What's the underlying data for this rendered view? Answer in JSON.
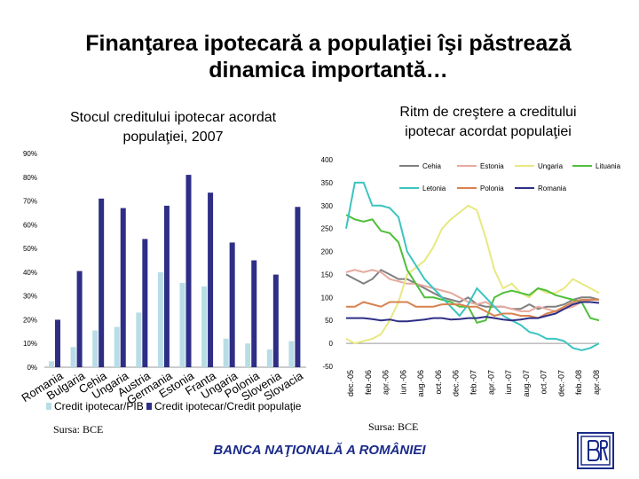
{
  "slide": {
    "title_line1": "Finanţarea ipotecară a populaţiei îşi păstrează",
    "title_line2": "dinamica importantă…",
    "footer": "BANCA NAŢIONALĂ A ROMÂNIEI",
    "logo_icon": "bnr-logo-icon",
    "accent_color": "#1a2a8a"
  },
  "chart_data": [
    {
      "type": "bar",
      "subtitle_line1": "Stocul creditului ipotecar acordat",
      "subtitle_line2": "populaţiei, 2007",
      "source": "Sursa: BCE",
      "categories": [
        "Romania",
        "Bulgaria",
        "Cehia",
        "Ungaria",
        "Austria",
        "Germania",
        "Estonia",
        "Franta",
        "Ungaria",
        "Polonia",
        "Slovenia",
        "Slovacia"
      ],
      "series": [
        {
          "name": "Credit ipotecar/PIB",
          "color": "#b8dde6",
          "values": [
            2.5,
            8.5,
            15.5,
            17,
            23,
            40,
            35.5,
            34,
            12,
            10,
            7.5,
            11
          ]
        },
        {
          "name": "Credit ipotecar/Credit populaţie",
          "color": "#2e2e86",
          "values": [
            20,
            40.5,
            71,
            67,
            54,
            68,
            81,
            73.5,
            52.5,
            45,
            39,
            67.5
          ]
        }
      ],
      "y_ticks": [
        "0%",
        "10%",
        "20%",
        "30%",
        "40%",
        "50%",
        "60%",
        "70%",
        "80%",
        "90%"
      ],
      "ylim": [
        0,
        90
      ],
      "grid": false,
      "legend": "bottom"
    },
    {
      "type": "line",
      "subtitle_line1": "Ritm de creştere a creditului",
      "subtitle_line2": "ipotecar acordat populaţiei",
      "source": "Sursa: BCE",
      "y_ticks": [
        "-50",
        "0",
        "50",
        "100",
        "150",
        "200",
        "250",
        "300",
        "350",
        "400"
      ],
      "ylim": [
        -50,
        400
      ],
      "x_ticks": [
        "dec.-05",
        "feb.-06",
        "apr.-06",
        "iun.-06",
        "aug.-06",
        "oct.-06",
        "dec.-06",
        "feb.-07",
        "apr.-07",
        "iun.-07",
        "aug.-07",
        "oct.-07",
        "dec.-07",
        "feb.-08",
        "apr.-08"
      ],
      "grid": false,
      "legend": "top",
      "series": [
        {
          "name": "Cehia",
          "color": "#7f7f7f",
          "values": [
            150,
            140,
            130,
            140,
            160,
            150,
            140,
            140,
            130,
            120,
            110,
            100,
            95,
            90,
            100,
            85,
            80,
            80,
            80,
            75,
            75,
            85,
            75,
            80,
            80,
            85,
            95,
            100,
            100,
            95
          ]
        },
        {
          "name": "Estonia",
          "color": "#e6a99e",
          "values": [
            155,
            160,
            155,
            160,
            155,
            140,
            135,
            130,
            130,
            125,
            120,
            115,
            110,
            100,
            90,
            85,
            90,
            80,
            80,
            75,
            70,
            70,
            80,
            75,
            70,
            75,
            80,
            90,
            95,
            95
          ]
        },
        {
          "name": "Ungaria",
          "color": "#e8e880",
          "values": [
            10,
            0,
            5,
            10,
            20,
            50,
            90,
            150,
            165,
            180,
            210,
            250,
            270,
            285,
            300,
            290,
            230,
            160,
            120,
            130,
            110,
            100,
            120,
            110,
            110,
            120,
            140,
            130,
            120,
            110
          ]
        },
        {
          "name": "Lituania",
          "color": "#4fbf3a",
          "values": [
            280,
            270,
            265,
            270,
            245,
            240,
            220,
            160,
            130,
            100,
            100,
            95,
            90,
            80,
            80,
            45,
            50,
            100,
            110,
            115,
            110,
            105,
            120,
            115,
            105,
            100,
            95,
            90,
            55,
            50
          ]
        },
        {
          "name": "Letonia",
          "color": "#3cc4c0",
          "values": [
            250,
            350,
            350,
            300,
            300,
            295,
            275,
            200,
            170,
            140,
            120,
            100,
            80,
            60,
            85,
            120,
            100,
            80,
            60,
            50,
            40,
            25,
            20,
            10,
            10,
            5,
            -10,
            -15,
            -10,
            0
          ]
        },
        {
          "name": "Polonia",
          "color": "#d8824f",
          "values": [
            80,
            80,
            90,
            85,
            80,
            90,
            90,
            90,
            80,
            80,
            80,
            85,
            85,
            85,
            80,
            80,
            70,
            60,
            65,
            65,
            60,
            60,
            55,
            65,
            70,
            80,
            90,
            95,
            95,
            95
          ]
        },
        {
          "name": "Romania",
          "color": "#2e2e86",
          "values": [
            55,
            55,
            55,
            53,
            50,
            52,
            48,
            48,
            50,
            52,
            55,
            55,
            52,
            53,
            55,
            55,
            58,
            55,
            52,
            50,
            52,
            55,
            55,
            60,
            65,
            75,
            85,
            90,
            90,
            88
          ]
        }
      ]
    }
  ]
}
